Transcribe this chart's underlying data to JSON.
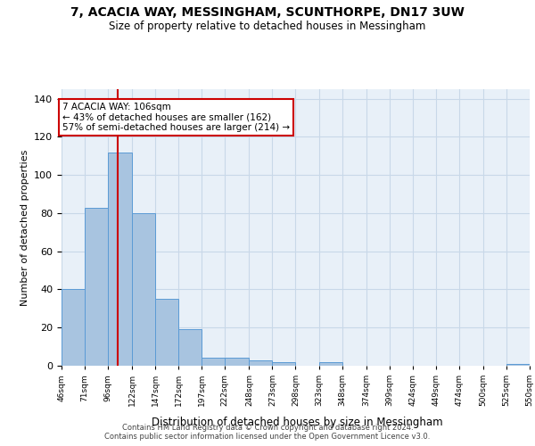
{
  "title": "7, ACACIA WAY, MESSINGHAM, SCUNTHORPE, DN17 3UW",
  "subtitle": "Size of property relative to detached houses in Messingham",
  "xlabel": "Distribution of detached houses by size in Messingham",
  "ylabel": "Number of detached properties",
  "annotation_line1": "7 ACACIA WAY: 106sqm",
  "annotation_line2": "← 43% of detached houses are smaller (162)",
  "annotation_line3": "57% of semi-detached houses are larger (214) →",
  "bin_edges": [
    46,
    71,
    96,
    122,
    147,
    172,
    197,
    222,
    248,
    273,
    298,
    323,
    348,
    374,
    399,
    424,
    449,
    474,
    500,
    525,
    550
  ],
  "bin_labels": [
    "46sqm",
    "71sqm",
    "96sqm",
    "122sqm",
    "147sqm",
    "172sqm",
    "197sqm",
    "222sqm",
    "248sqm",
    "273sqm",
    "298sqm",
    "323sqm",
    "348sqm",
    "374sqm",
    "399sqm",
    "424sqm",
    "449sqm",
    "474sqm",
    "500sqm",
    "525sqm",
    "550sqm"
  ],
  "bar_heights": [
    40,
    83,
    112,
    80,
    35,
    19,
    4,
    4,
    3,
    2,
    0,
    2,
    0,
    0,
    0,
    0,
    0,
    0,
    0,
    1
  ],
  "bar_color": "#a8c4e0",
  "bar_edge_color": "#5b9bd5",
  "vline_x": 106,
  "vline_color": "#cc0000",
  "grid_color": "#c8d8e8",
  "bg_color": "#e8f0f8",
  "ylim": [
    0,
    145
  ],
  "yticks": [
    0,
    20,
    40,
    60,
    80,
    100,
    120,
    140
  ],
  "footer_line1": "Contains HM Land Registry data © Crown copyright and database right 2024.",
  "footer_line2": "Contains public sector information licensed under the Open Government Licence v3.0."
}
